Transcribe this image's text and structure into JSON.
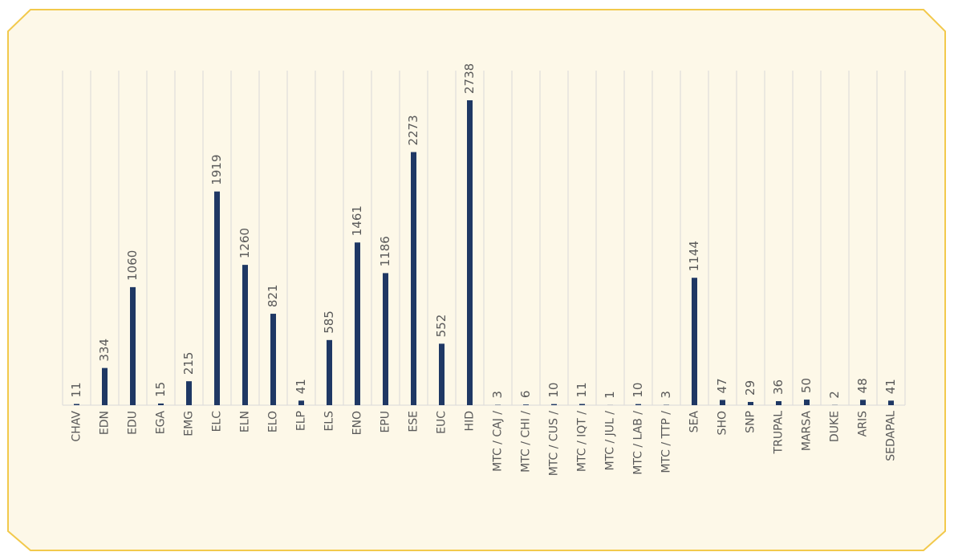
{
  "chart_data": {
    "type": "bar",
    "categories": [
      "CHAV",
      "EDN",
      "EDU",
      "EGA",
      "EMG",
      "ELC",
      "ELN",
      "ELO",
      "ELP",
      "ELS",
      "ENO",
      "EPU",
      "ESE",
      "EUC",
      "HID",
      "MTC / CAJ /",
      "MTC / CHI /",
      "MTC / CUS /",
      "MTC / IQT /",
      "MTC / JUL /",
      "MTC / LAB /",
      "MTC / TTP /",
      "SEA",
      "SHO",
      "SNP",
      "TRUPAL",
      "MARSA",
      "DUKE",
      "ARIS",
      "SEDAPAL"
    ],
    "values": [
      11,
      334,
      1060,
      15,
      215,
      1919,
      1260,
      821,
      41,
      585,
      1461,
      1186,
      2273,
      552,
      2738,
      3,
      6,
      10,
      11,
      1,
      10,
      3,
      1144,
      47,
      29,
      36,
      50,
      2,
      48,
      41
    ],
    "color": "#1f3864",
    "grid": true
  }
}
